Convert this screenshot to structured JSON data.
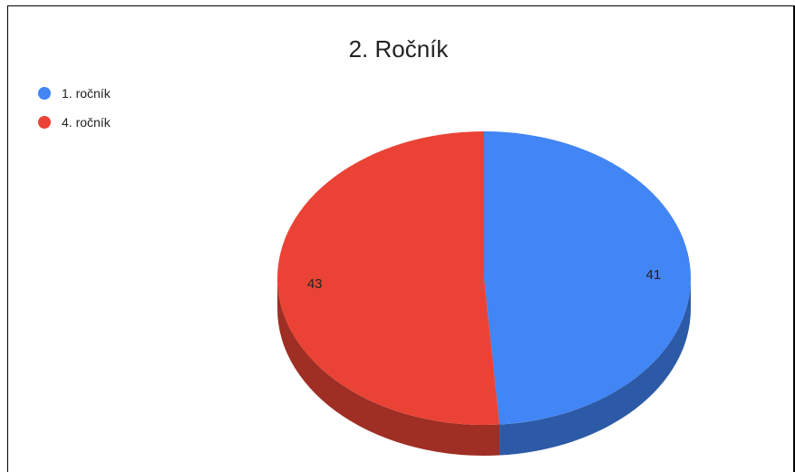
{
  "chart_data": {
    "type": "pie",
    "title": "2. Ročník",
    "categories": [
      "1. ročník",
      "4. ročník"
    ],
    "values": [
      41,
      43
    ],
    "colors": [
      "#4285f4",
      "#ea4335"
    ],
    "legend_position": "top-left",
    "three_d": true
  }
}
